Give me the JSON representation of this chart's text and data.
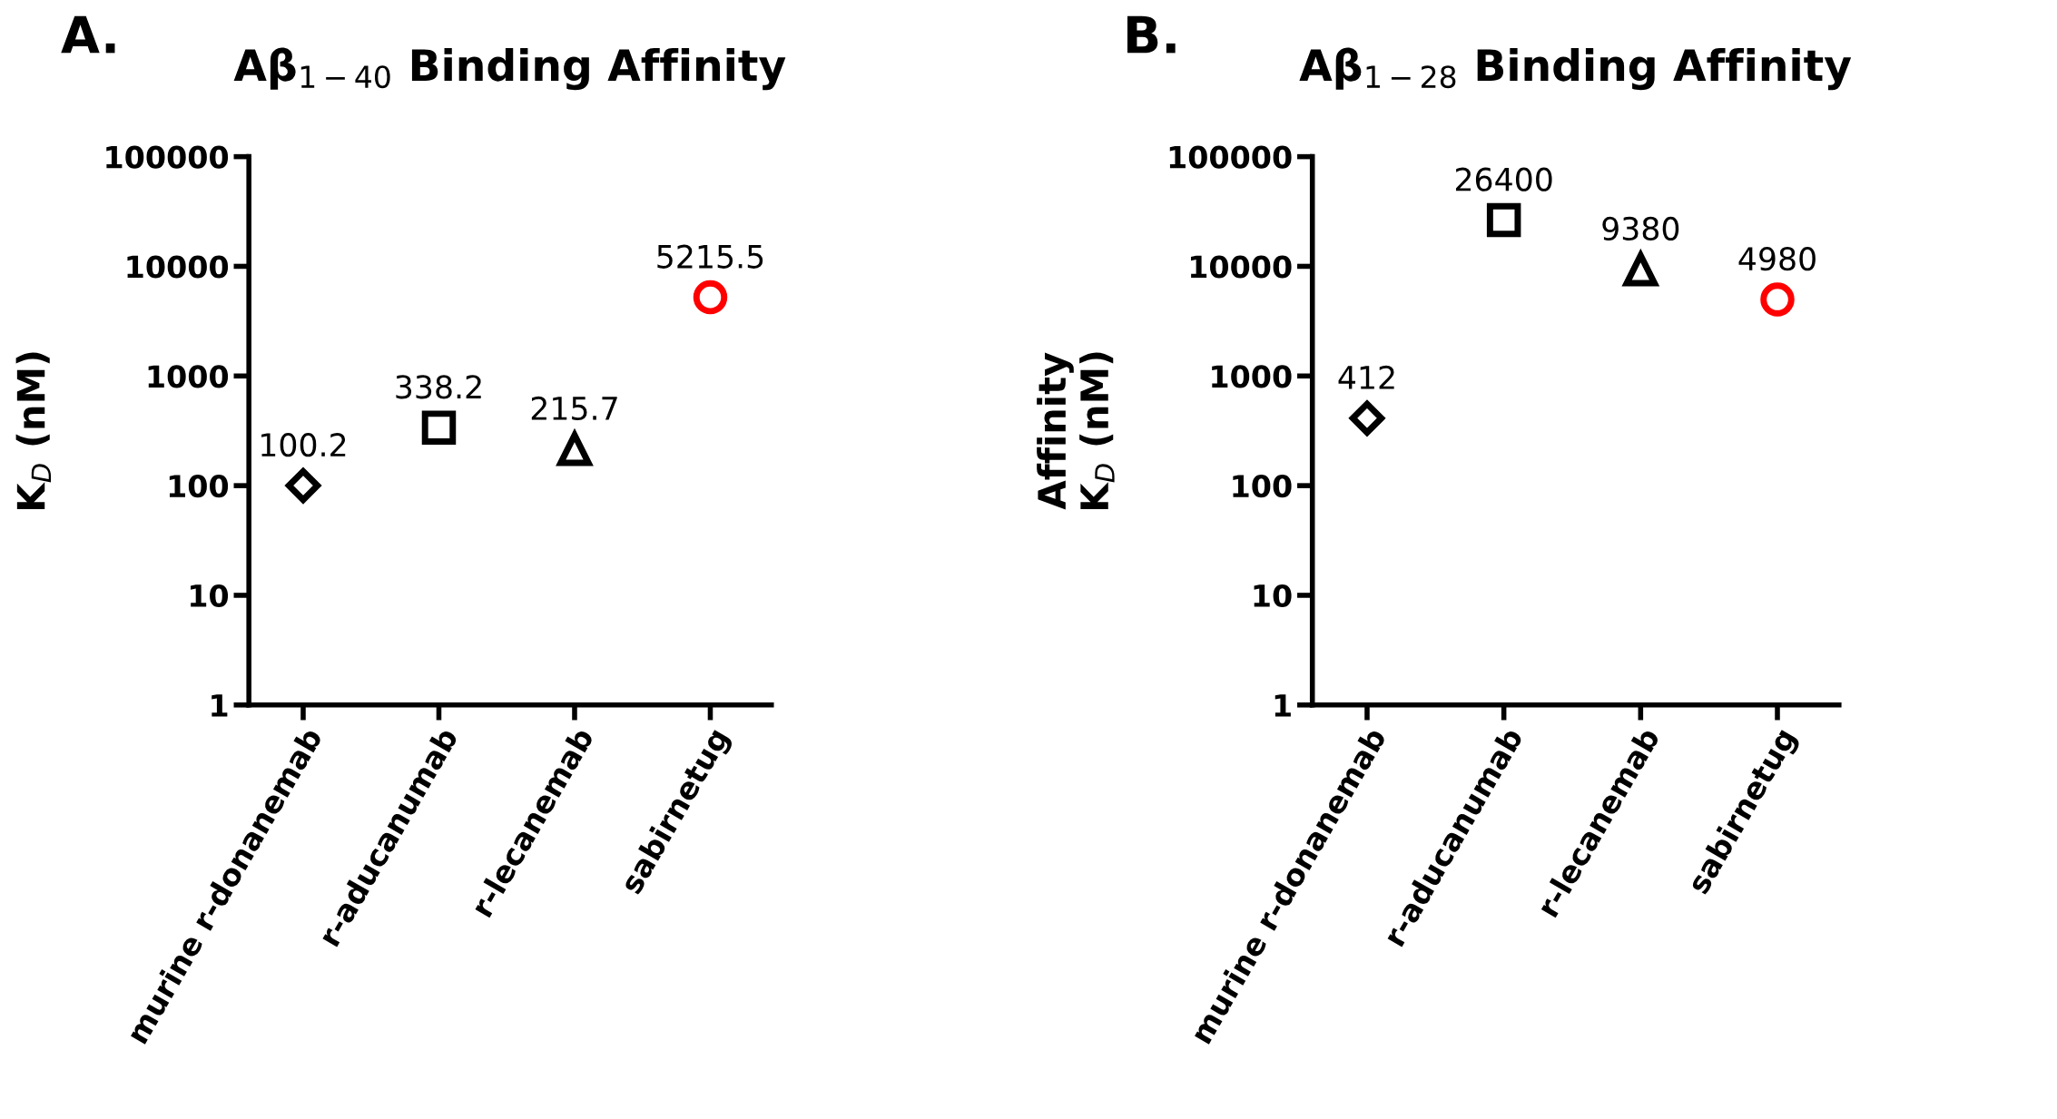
{
  "chart_data": [
    {
      "type": "scatter",
      "title": "Aβ$_{1−40}$ Binding Affinity",
      "ylabel": "K$_{D}$ (nM)",
      "annotations": [
        "A."
      ],
      "categories": [
        "murine r-donanemab",
        "r-aducanumab",
        "r-lecanemab",
        "sabirnetug"
      ],
      "series": [
        {
          "color": "#000000",
          "marker": "diamond",
          "values": [
            100.2,
            null,
            null,
            null
          ]
        },
        {
          "color": "#000000",
          "marker": "square",
          "values": [
            null,
            338.2,
            null,
            null
          ]
        },
        {
          "color": "#000000",
          "marker": "triangle",
          "values": [
            null,
            null,
            215.7,
            null
          ]
        },
        {
          "color": "#ff0000",
          "marker": "circle",
          "values": [
            null,
            null,
            null,
            5215.5
          ]
        }
      ],
      "log": true,
      "ylim": [
        1,
        100000
      ],
      "yticks": [
        1,
        10,
        100,
        1000,
        10000,
        100000
      ],
      "grid": false,
      "legend": false,
      "data_labels": true
    },
    {
      "type": "scatter",
      "title": "Aβ$_{1−28}$ Binding Affinity",
      "ylabel": "Affinity\nK$_{D}$ (nM)",
      "annotations": [
        "B."
      ],
      "categories": [
        "murine r-donanemab",
        "r-aducanumab",
        "r-lecanemab",
        "sabirnetug"
      ],
      "series": [
        {
          "color": "#000000",
          "marker": "diamond",
          "values": [
            412,
            null,
            null,
            null
          ]
        },
        {
          "color": "#000000",
          "marker": "square",
          "values": [
            null,
            26400,
            null,
            null
          ]
        },
        {
          "color": "#000000",
          "marker": "triangle",
          "values": [
            null,
            null,
            9380,
            null
          ]
        },
        {
          "color": "#ff0000",
          "marker": "circle",
          "values": [
            null,
            null,
            null,
            4980
          ]
        }
      ],
      "log": true,
      "ylim": [
        1,
        100000
      ],
      "yticks": [
        1,
        10,
        100,
        1000,
        10000,
        100000
      ],
      "grid": false,
      "legend": false,
      "data_labels": true
    }
  ]
}
